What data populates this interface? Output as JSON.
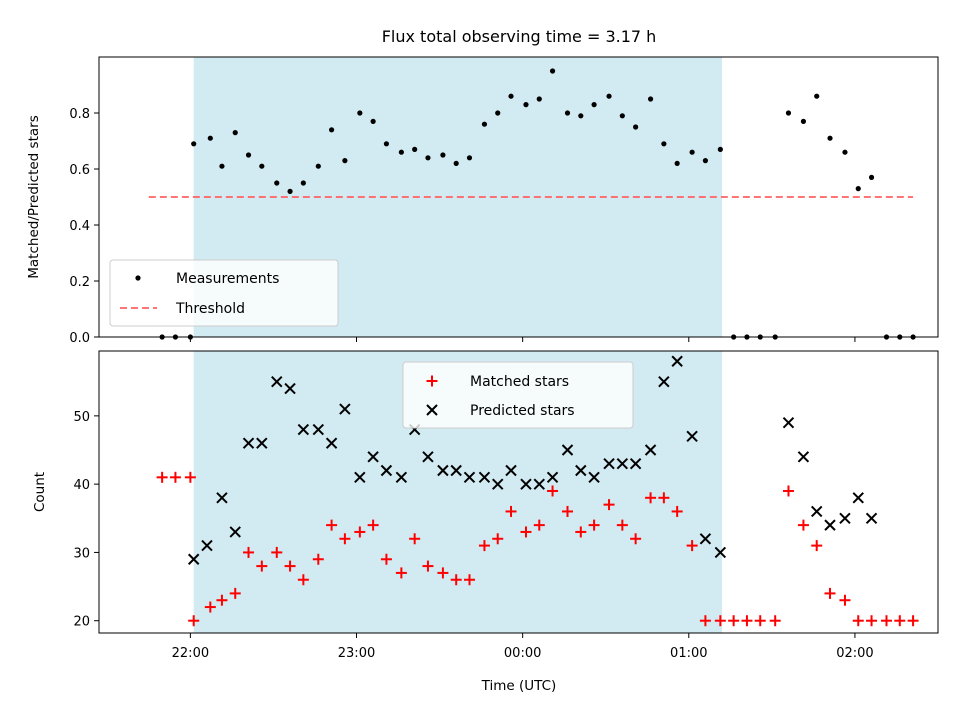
{
  "chart_data": [
    {
      "type": "scatter",
      "title": "Flux total observing time = 3.17 h",
      "xlabel": "",
      "ylabel": "Matched/Predicted stars",
      "ylim": [
        0,
        1.0
      ],
      "yticks": [
        "0.0",
        "0.2",
        "0.4",
        "0.6",
        "0.8"
      ],
      "xlim_hours": [
        21.45,
        26.5
      ],
      "shaded_region_hours": [
        22.02,
        25.2
      ],
      "shaded_color": "#add8e6",
      "legend_position": "lower-left",
      "threshold": {
        "name": "Threshold",
        "value": 0.5,
        "x_hours": [
          21.75,
          26.35
        ],
        "color": "#ff6666"
      },
      "series": [
        {
          "name": "Measurements",
          "color": "#000000",
          "x_hours": [
            21.83,
            21.91,
            22.0,
            22.02,
            22.12,
            22.19,
            22.27,
            22.35,
            22.43,
            22.52,
            22.6,
            22.68,
            22.77,
            22.85,
            22.93,
            23.02,
            23.1,
            23.18,
            23.27,
            23.35,
            23.43,
            23.52,
            23.6,
            23.68,
            23.77,
            23.85,
            23.93,
            24.02,
            24.1,
            24.18,
            24.27,
            24.35,
            24.43,
            24.52,
            24.6,
            24.68,
            24.77,
            24.85,
            24.93,
            25.02,
            25.1,
            25.19,
            25.27,
            25.35,
            25.43,
            25.52,
            25.6,
            25.69,
            25.77,
            25.85,
            25.94,
            26.02,
            26.1,
            26.19,
            26.27,
            26.35
          ],
          "values": [
            0,
            0,
            0,
            0.69,
            0.71,
            0.61,
            0.73,
            0.65,
            0.61,
            0.55,
            0.52,
            0.55,
            0.61,
            0.74,
            0.63,
            0.8,
            0.77,
            0.69,
            0.66,
            0.67,
            0.64,
            0.65,
            0.62,
            0.64,
            0.76,
            0.8,
            0.86,
            0.83,
            0.85,
            0.95,
            0.8,
            0.79,
            0.83,
            0.86,
            0.79,
            0.75,
            0.85,
            0.69,
            0.62,
            0.66,
            0.63,
            0.67,
            0,
            0,
            0,
            0,
            0.8,
            0.77,
            0.86,
            0.71,
            0.66,
            0.53,
            0.57,
            0,
            0,
            0
          ]
        }
      ]
    },
    {
      "type": "scatter",
      "xlabel": "Time (UTC)",
      "ylabel": "Count",
      "ylim": [
        18.2,
        59.5
      ],
      "yticks": [
        "20",
        "30",
        "40",
        "50"
      ],
      "xlim_hours": [
        21.45,
        26.5
      ],
      "xticks": [
        "22:00",
        "23:00",
        "00:00",
        "01:00",
        "02:00"
      ],
      "legend_position": "upper-center",
      "series": [
        {
          "name": "Matched stars",
          "color": "#ff0000",
          "marker": "plus",
          "x_hours": [
            21.83,
            21.91,
            22.0,
            22.02,
            22.12,
            22.19,
            22.27,
            22.35,
            22.43,
            22.52,
            22.6,
            22.68,
            22.77,
            22.85,
            22.93,
            23.02,
            23.1,
            23.18,
            23.27,
            23.35,
            23.43,
            23.52,
            23.6,
            23.68,
            23.77,
            23.85,
            23.93,
            24.02,
            24.1,
            24.18,
            24.27,
            24.35,
            24.43,
            24.52,
            24.6,
            24.68,
            24.77,
            24.85,
            24.93,
            25.02,
            25.1,
            25.19,
            25.27,
            25.35,
            25.43,
            25.52,
            25.6,
            25.69,
            25.77,
            25.85,
            25.94,
            26.02,
            26.1,
            26.19,
            26.27,
            26.35
          ],
          "values": [
            41,
            41,
            41,
            20,
            22,
            23,
            24,
            30,
            28,
            30,
            28,
            26,
            29,
            34,
            32,
            33,
            34,
            29,
            27,
            32,
            28,
            27,
            26,
            26,
            31,
            32,
            36,
            33,
            34,
            39,
            36,
            33,
            34,
            37,
            34,
            32,
            38,
            38,
            36,
            31,
            20,
            20,
            20,
            20,
            20,
            20,
            39,
            34,
            31,
            24,
            23,
            20,
            20,
            20,
            20,
            20
          ]
        },
        {
          "name": "Predicted stars",
          "color": "#000000",
          "marker": "x",
          "x_hours": [
            22.02,
            22.1,
            22.19,
            22.27,
            22.35,
            22.43,
            22.52,
            22.6,
            22.68,
            22.77,
            22.85,
            22.93,
            23.02,
            23.1,
            23.18,
            23.27,
            23.35,
            23.43,
            23.52,
            23.6,
            23.68,
            23.77,
            23.85,
            23.93,
            24.02,
            24.1,
            24.18,
            24.27,
            24.35,
            24.43,
            24.52,
            24.6,
            24.68,
            24.77,
            24.85,
            24.93,
            25.02,
            25.1,
            25.19,
            25.6,
            25.69,
            25.77,
            25.85,
            25.94,
            26.02,
            26.1
          ],
          "values": [
            29,
            31,
            38,
            33,
            46,
            46,
            55,
            54,
            48,
            48,
            46,
            51,
            41,
            44,
            42,
            41,
            48,
            44,
            42,
            42,
            41,
            41,
            40,
            42,
            40,
            40,
            41,
            45,
            42,
            41,
            43,
            43,
            43,
            45,
            55,
            58,
            47,
            32,
            30,
            49,
            44,
            36,
            34,
            35,
            38,
            35
          ]
        }
      ]
    }
  ]
}
